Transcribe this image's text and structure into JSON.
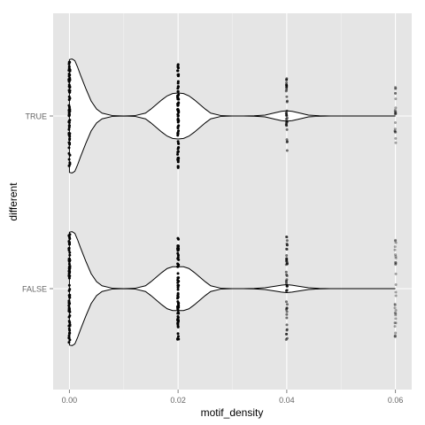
{
  "chart_data": {
    "type": "violin",
    "orientation": "horizontal",
    "xlabel": "motif_density",
    "ylabel": "different",
    "xlim": [
      -0.003,
      0.063
    ],
    "x_ticks": [
      0.0,
      0.02,
      0.04,
      0.06
    ],
    "x_tick_labels": [
      "0.00",
      "0.02",
      "0.04",
      "0.06"
    ],
    "categories": [
      "FALSE",
      "TRUE"
    ],
    "grid": true,
    "panel_background": "#e5e5e5",
    "grid_color": "#ffffff",
    "series": [
      {
        "category": "TRUE",
        "observed_values": [
          0.0,
          0.02,
          0.04,
          0.06
        ],
        "point_spread": [
          0.95,
          0.95,
          0.65,
          0.5
        ],
        "point_opacity": [
          1.0,
          1.0,
          0.55,
          0.35
        ],
        "violin": {
          "x": [
            0,
            0.0005,
            0.001,
            0.0015,
            0.002,
            0.003,
            0.004,
            0.005,
            0.006,
            0.008,
            0.01,
            0.012,
            0.014,
            0.015,
            0.016,
            0.017,
            0.018,
            0.019,
            0.02,
            0.021,
            0.022,
            0.023,
            0.024,
            0.025,
            0.026,
            0.028,
            0.03,
            0.032,
            0.034,
            0.036,
            0.038,
            0.039,
            0.04,
            0.041,
            0.042,
            0.044,
            0.046,
            0.048,
            0.05,
            0.055,
            0.06
          ],
          "half_width": [
            0.98,
            0.99,
            0.96,
            0.85,
            0.72,
            0.48,
            0.26,
            0.12,
            0.05,
            0.005,
            0.0,
            0.005,
            0.05,
            0.12,
            0.2,
            0.28,
            0.35,
            0.39,
            0.4,
            0.39,
            0.35,
            0.28,
            0.2,
            0.12,
            0.05,
            0.005,
            0.0,
            0.0,
            0.003,
            0.015,
            0.06,
            0.08,
            0.09,
            0.08,
            0.06,
            0.015,
            0.003,
            0.0,
            0.0,
            0.0,
            0.0
          ]
        }
      },
      {
        "category": "FALSE",
        "observed_values": [
          0.0,
          0.02,
          0.04,
          0.06
        ],
        "point_spread": [
          0.95,
          0.92,
          0.95,
          0.85
        ],
        "point_opacity": [
          1.0,
          1.0,
          0.55,
          0.35
        ],
        "violin": {
          "x": [
            0,
            0.0005,
            0.001,
            0.0015,
            0.002,
            0.003,
            0.004,
            0.005,
            0.006,
            0.008,
            0.01,
            0.012,
            0.014,
            0.015,
            0.016,
            0.017,
            0.018,
            0.019,
            0.02,
            0.021,
            0.022,
            0.023,
            0.024,
            0.025,
            0.026,
            0.028,
            0.03,
            0.032,
            0.034,
            0.036,
            0.038,
            0.039,
            0.04,
            0.041,
            0.042,
            0.044,
            0.046,
            0.048,
            0.05,
            0.055,
            0.06
          ],
          "half_width": [
            0.98,
            0.99,
            0.96,
            0.85,
            0.72,
            0.48,
            0.26,
            0.12,
            0.05,
            0.005,
            0.0,
            0.005,
            0.05,
            0.12,
            0.2,
            0.28,
            0.35,
            0.38,
            0.38,
            0.38,
            0.35,
            0.28,
            0.2,
            0.12,
            0.05,
            0.005,
            0.0,
            0.0,
            0.003,
            0.015,
            0.045,
            0.06,
            0.07,
            0.06,
            0.045,
            0.015,
            0.003,
            0.0,
            0.0,
            0.0,
            0.0
          ]
        }
      }
    ]
  }
}
